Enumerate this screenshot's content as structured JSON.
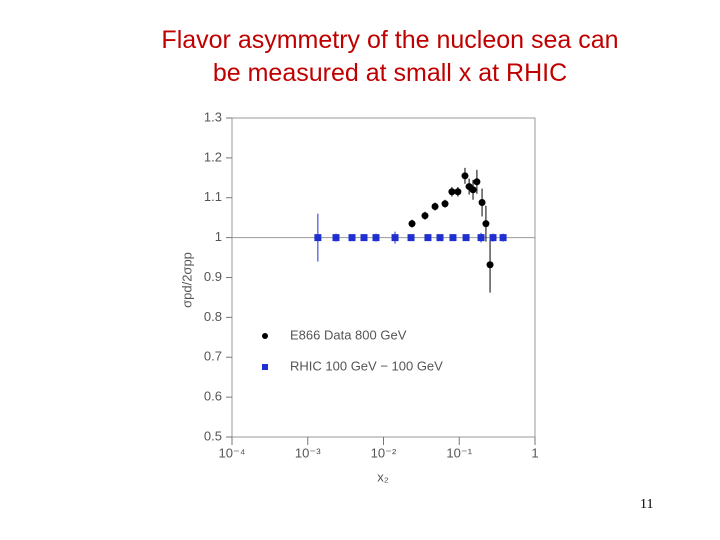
{
  "slide": {
    "title_lines": [
      "Flavor asymmetry of the nucleon sea can",
      "be measured at small x at RHIC"
    ],
    "page_number": 11
  },
  "chart_data": {
    "type": "scatter",
    "xlabel": "x₂",
    "ylabel": "σpd/2σpp",
    "xscale": "log",
    "xlim": [
      0.0001,
      1
    ],
    "ylim": [
      0.5,
      1.3
    ],
    "xticks": [
      {
        "value": 0.0001,
        "label": "10⁻⁴"
      },
      {
        "value": 0.001,
        "label": "10⁻³"
      },
      {
        "value": 0.01,
        "label": "10⁻²"
      },
      {
        "value": 0.1,
        "label": "10⁻¹"
      },
      1
    ],
    "yticks": [
      0.5,
      0.6,
      0.7,
      0.8,
      0.9,
      1,
      1.1,
      1.2,
      1.3
    ],
    "hline": 1,
    "legend": "center-left",
    "series": [
      {
        "name": "E866 Data 800 GeV",
        "color": "#000000",
        "marker": "circle",
        "x": [
          0.0238,
          0.0353,
          0.0479,
          0.0649,
          0.08,
          0.096,
          0.119,
          0.135,
          0.152,
          0.171,
          0.2,
          0.225,
          0.255
        ],
        "values": [
          1.035,
          1.055,
          1.078,
          1.085,
          1.115,
          1.115,
          1.155,
          1.128,
          1.12,
          1.14,
          1.088,
          1.035,
          0.932
        ],
        "errors": [
          0.01,
          0.01,
          0.01,
          0.01,
          0.012,
          0.012,
          0.02,
          0.02,
          0.025,
          0.03,
          0.035,
          0.045,
          0.07
        ]
      },
      {
        "name": "RHIC 100 GeV − 100 GeV",
        "color": "#1f2fd0",
        "marker": "square",
        "x": [
          0.00136,
          0.00236,
          0.00384,
          0.00553,
          0.00796,
          0.0142,
          0.0231,
          0.0386,
          0.0557,
          0.0826,
          0.123,
          0.194,
          0.279,
          0.379
        ],
        "values": [
          1,
          1,
          1,
          1,
          1,
          1,
          1,
          1,
          1,
          1,
          1,
          1,
          1,
          1
        ],
        "errors": [
          0.06,
          0.01,
          0.008,
          0.008,
          0.01,
          0.015,
          0.008,
          0.008,
          0.008,
          0.008,
          0.008,
          0.012,
          0.01,
          0.01
        ]
      }
    ]
  }
}
